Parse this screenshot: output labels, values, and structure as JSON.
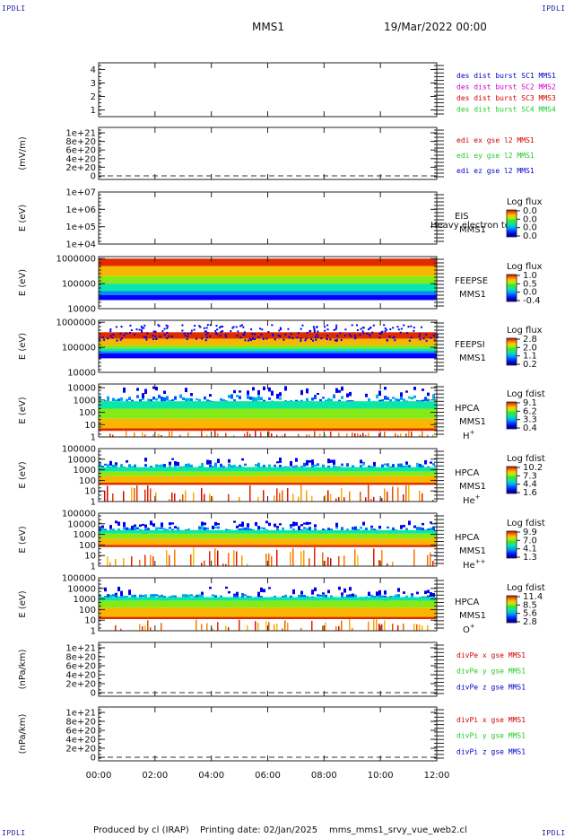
{
  "corner_label": "IPDLI",
  "header": {
    "mission": "MMS1",
    "date": "19/Mar/2022 00:00"
  },
  "footer": {
    "produced_by": "Produced by cl (IRAP)",
    "printing_date": "Printing date: 02/Jan/2025",
    "file": "mms_mms1_srvy_vue_web2.cl"
  },
  "colors": {
    "red": "#d40000",
    "green": "#22cc22",
    "blue": "#0000c8",
    "magenta": "#cc00cc"
  },
  "chart_data": {
    "type": "stacked time-series panels (line + spectrogram)",
    "x": {
      "range": [
        "00:00",
        "12:00"
      ],
      "tick_labels": [
        "00:00",
        "02:00",
        "04:00",
        "06:00",
        "08:00",
        "10:00",
        "12:00"
      ]
    },
    "panels": [
      {
        "type": "line",
        "ylabel": "",
        "ylim": [
          0.5,
          4.5
        ],
        "scale": "linear",
        "ytick_labels": [
          "4",
          "3",
          "2",
          "1"
        ],
        "legend": [
          {
            "text": "des dist burst SC1 MMS1",
            "color": "#0000c8"
          },
          {
            "text": "des dist burst SC2 MMS2",
            "color": "#cc00cc"
          },
          {
            "text": "des dist burst SC3 MMS3",
            "color": "#d40000"
          },
          {
            "text": "des dist burst SC4 MMS4",
            "color": "#22cc22"
          }
        ]
      },
      {
        "type": "line",
        "ylabel": "(mV/m)",
        "ylim": [
          0,
          1e+21
        ],
        "scale": "linear",
        "zero_line": true,
        "ytick_labels": [
          "1e+21",
          "8e+20",
          "6e+20",
          "4e+20",
          "2e+20",
          "0"
        ],
        "legend": [
          {
            "text": "edi ex gse l2 MMS1",
            "color": "#d40000"
          },
          {
            "text": "edi ey gse l2 MMS1",
            "color": "#22cc22"
          },
          {
            "text": "edi ez gse l2 MMS1",
            "color": "#0000c8"
          }
        ]
      },
      {
        "type": "spectrogram",
        "ylabel": "E (eV)",
        "ylim": [
          10000.0,
          10000000.0
        ],
        "scale": "log",
        "ytick_labels": [
          "1e+07",
          "1e+06",
          "1e+05",
          "1e+04"
        ],
        "side_labels": [
          "EIS",
          "MMS1"
        ],
        "overlay_text": "Heavy electron to",
        "colorbar": {
          "title": "Log flux",
          "ticks": [
            "0.0",
            "0.0",
            "0.0",
            "0.0"
          ]
        },
        "data": "none"
      },
      {
        "type": "spectrogram",
        "ylabel": "E (eV)",
        "ylim": [
          10000.0,
          1200000.0
        ],
        "scale": "log",
        "ytick_labels": [
          "1000000",
          "100000",
          "10000"
        ],
        "side_labels": [
          "FEEPSE",
          "MMS1"
        ],
        "colorbar": {
          "title": "Log flux",
          "ticks": [
            "1.0",
            "0.5",
            "0.0",
            "-0.4"
          ]
        },
        "band_high_eV": [
          1000000.0,
          500000.0,
          200000.0,
          100000.0,
          50000.0,
          35000.0
        ],
        "noise_top": false
      },
      {
        "type": "spectrogram",
        "ylabel": "E (eV)",
        "ylim": [
          10000.0,
          1200000.0
        ],
        "scale": "log",
        "ytick_labels": [
          "1000000",
          "100000",
          "10000"
        ],
        "side_labels": [
          "FEEPSI",
          "MMS1"
        ],
        "colorbar": {
          "title": "Log flux",
          "ticks": [
            "2.8",
            "2.0",
            "1.1",
            "0.2"
          ]
        },
        "band_high_eV": [
          400000.0,
          220000.0,
          120000.0,
          90000.0,
          70000.0,
          58000.0
        ],
        "noise_top": true
      },
      {
        "type": "spectrogram",
        "ylabel": "E (eV)",
        "ylim": [
          1,
          20000.0
        ],
        "scale": "log",
        "ytick_labels": [
          "10000",
          "1000",
          "100",
          "10",
          "1"
        ],
        "side_labels": [
          "HPCA",
          "MMS1"
        ],
        "species": "H",
        "species_sup": "+",
        "colorbar": {
          "title": "Log fdist",
          "ticks": [
            "9.1",
            "6.2",
            "3.3",
            "0.4"
          ]
        },
        "band_high_eV": [
          15000.0,
          3000.0,
          800,
          200,
          30,
          5
        ]
      },
      {
        "type": "spectrogram",
        "ylabel": "E (eV)",
        "ylim": [
          1,
          100000.0
        ],
        "scale": "log",
        "ytick_labels": [
          "100000",
          "10000",
          "1000",
          "100",
          "10",
          "1"
        ],
        "side_labels": [
          "HPCA",
          "MMS1"
        ],
        "species": "He",
        "species_sup": "+",
        "colorbar": {
          "title": "Log fdist",
          "ticks": [
            "10.2",
            "7.3",
            "4.4",
            "1.6"
          ]
        },
        "band_high_eV": [
          15000.0,
          5000.0,
          1800.0,
          700,
          250,
          60
        ]
      },
      {
        "type": "spectrogram",
        "ylabel": "E (eV)",
        "ylim": [
          1,
          100000.0
        ],
        "scale": "log",
        "ytick_labels": [
          "100000",
          "10000",
          "1000",
          "100",
          "10",
          "1"
        ],
        "side_labels": [
          "HPCA",
          "MMS1"
        ],
        "species": "He",
        "species_sup": "++",
        "colorbar": {
          "title": "Log fdist",
          "ticks": [
            "9.9",
            "7.0",
            "4.1",
            "1.3"
          ]
        },
        "band_high_eV": [
          20000.0,
          6000.0,
          2500.0,
          1200.0,
          400,
          100
        ]
      },
      {
        "type": "spectrogram",
        "ylabel": "E (eV)",
        "ylim": [
          1,
          100000.0
        ],
        "scale": "log",
        "ytick_labels": [
          "100000",
          "10000",
          "1000",
          "100",
          "10",
          "1"
        ],
        "side_labels": [
          "HPCA",
          "MMS1"
        ],
        "species": "O",
        "species_sup": "+",
        "colorbar": {
          "title": "Log fdist",
          "ticks": [
            "11.4",
            "8.5",
            "5.6",
            "2.8"
          ]
        },
        "band_high_eV": [
          15000.0,
          3000.0,
          1500.0,
          700,
          150,
          20
        ]
      },
      {
        "type": "line",
        "ylabel": "(nPa/km)",
        "ylim": [
          0,
          1e+21
        ],
        "scale": "linear",
        "zero_line": true,
        "ytick_labels": [
          "1e+21",
          "8e+20",
          "6e+20",
          "4e+20",
          "2e+20",
          "0"
        ],
        "legend": [
          {
            "text": "divPe x gse MMS1",
            "color": "#d40000"
          },
          {
            "text": "divPe y gse MMS1",
            "color": "#22cc22"
          },
          {
            "text": "divPe z gse MMS1",
            "color": "#0000c8"
          }
        ]
      },
      {
        "type": "line",
        "ylabel": "(nPa/km)",
        "ylim": [
          0,
          1e+21
        ],
        "scale": "linear",
        "zero_line": true,
        "ytick_labels": [
          "1e+21",
          "8e+20",
          "6e+20",
          "4e+20",
          "2e+20",
          "0"
        ],
        "legend": [
          {
            "text": "divPi x gse MMS1",
            "color": "#d40000"
          },
          {
            "text": "divPi y gse MMS1",
            "color": "#22cc22"
          },
          {
            "text": "divPi z gse MMS1",
            "color": "#0000c8"
          }
        ]
      }
    ]
  }
}
